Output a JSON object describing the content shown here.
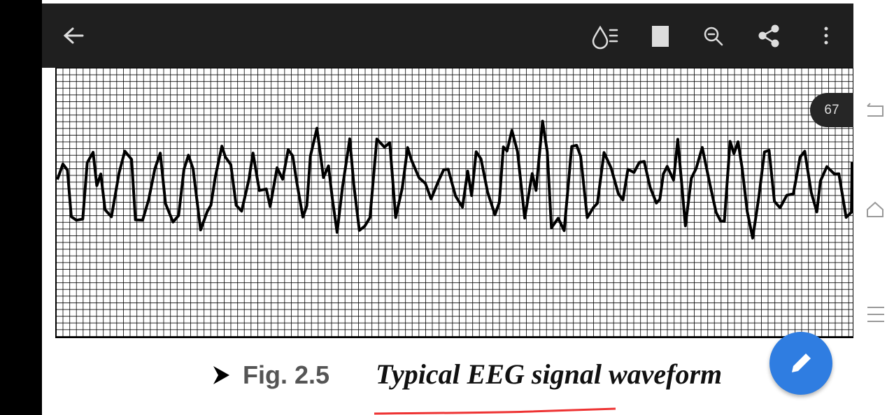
{
  "page_indicator": "67",
  "figure": {
    "label": "Fig. 2.5",
    "caption": "Typical EEG signal waveform"
  }
}
